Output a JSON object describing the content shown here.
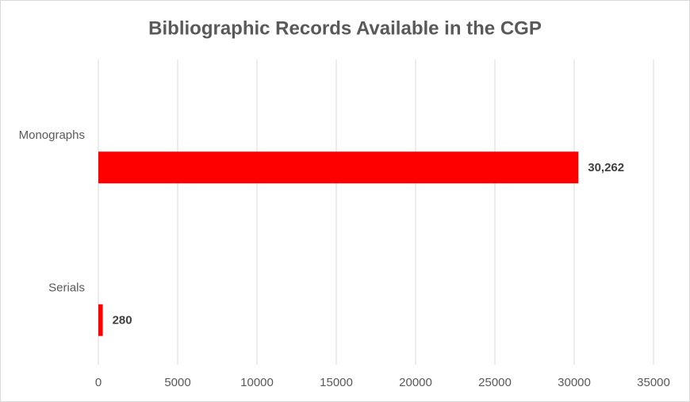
{
  "chart_data": {
    "type": "hbar",
    "title": "Bibliographic Records Available in the CGP",
    "categories": [
      "Monographs",
      "Serials"
    ],
    "values": [
      30262,
      280
    ],
    "value_labels": [
      "30,262",
      "280"
    ],
    "color": "#ff0000",
    "xlim": [
      0,
      35000
    ],
    "xticks": [
      0,
      5000,
      10000,
      15000,
      20000,
      25000,
      30000,
      35000
    ],
    "grid": true
  }
}
